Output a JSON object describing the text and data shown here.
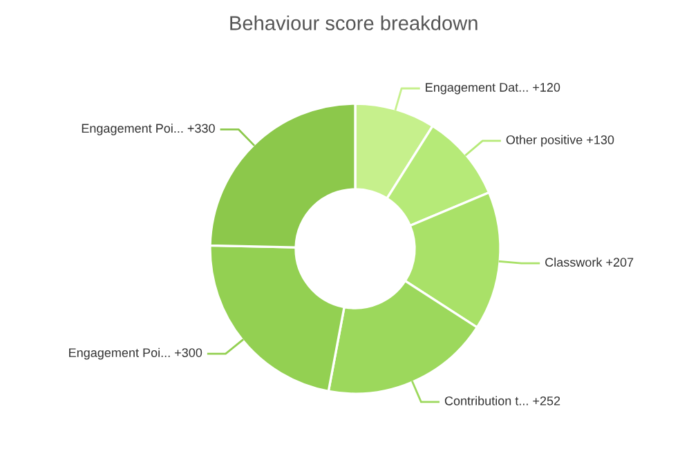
{
  "chart_data": {
    "type": "donut",
    "title": "Behaviour score breakdown",
    "categories": [
      "Engagement Dat... +120",
      "Other positive +130",
      "Classwork +207",
      "Contribution t... +252",
      "Engagement Poi... +300",
      "Engagement Poi... +330"
    ],
    "values": [
      120,
      130,
      207,
      252,
      300,
      330
    ],
    "colors": [
      "#c6f08c",
      "#b6ea78",
      "#a9e168",
      "#9cd85c",
      "#93d052",
      "#8cc84b"
    ]
  }
}
